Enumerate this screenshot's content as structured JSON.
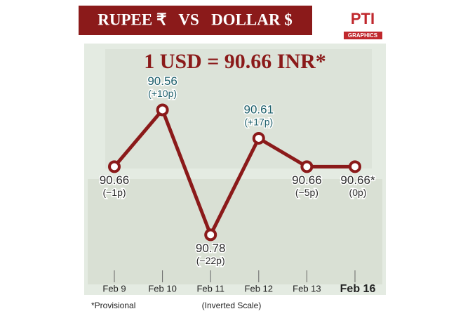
{
  "chart_data": {
    "type": "line",
    "title": "RUPEE ₹   VS   DOLLAR $",
    "headline": "1 USD = 90.66 INR*",
    "logo": "PTI",
    "logo_sub": "GRAPHICS",
    "categories": [
      "Feb 9",
      "Feb 10",
      "Feb 11",
      "Feb 12",
      "Feb 13",
      "Feb 16"
    ],
    "values": [
      90.66,
      90.56,
      90.78,
      90.61,
      90.66,
      90.66
    ],
    "value_labels": [
      "90.66",
      "90.56",
      "90.78",
      "90.61",
      "90.66",
      "90.66*"
    ],
    "change_labels": [
      "(−1p)",
      "(+10p)",
      "(−22p)",
      "(+17p)",
      "(−5p)",
      "(0p)"
    ],
    "label_colors": [
      "#2a2a2a",
      "#1d5f6b",
      "#2a2a2a",
      "#1d5f6b",
      "#2a2a2a",
      "#2a2a2a"
    ],
    "color": "#8b1a1a",
    "ylim": [
      90.5,
      90.85
    ],
    "inverted": true,
    "footnote": "*Provisional",
    "scale_note": "(Inverted Scale)"
  }
}
